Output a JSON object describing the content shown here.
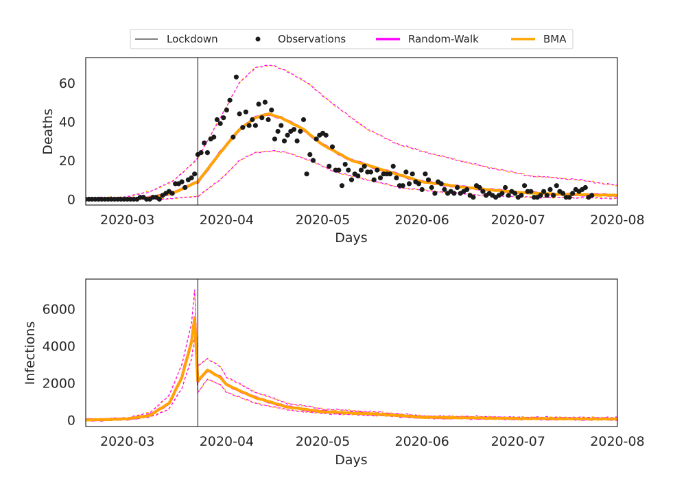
{
  "legend": {
    "items": [
      {
        "key": "lockdown",
        "label": "Lockdown",
        "color": "#000000",
        "style": "thin-line"
      },
      {
        "key": "observations",
        "label": "Observations",
        "color": "#1a1a1a",
        "style": "dot"
      },
      {
        "key": "random_walk",
        "label": "Random-Walk",
        "color": "#ff00ff",
        "style": "thick-line"
      },
      {
        "key": "bma",
        "label": "BMA",
        "color": "#ffa500",
        "style": "thick-line"
      }
    ]
  },
  "colors": {
    "random_walk": "#ff00ff",
    "bma": "#ffa500",
    "observations": "#1a1a1a",
    "lockdown": "#000000",
    "axes": "#262626"
  },
  "chart_data": [
    {
      "type": "line",
      "id": "deaths",
      "title": "",
      "xlabel": "Days",
      "ylabel": "Deaths",
      "xlim": [
        "2020-02-17",
        "2020-08-01"
      ],
      "ylim": [
        -3,
        73
      ],
      "x_ticks": [
        "2020-03-01",
        "2020-04-01",
        "2020-05-01",
        "2020-06-01",
        "2020-07-01",
        "2020-08-01"
      ],
      "x_tick_labels": [
        "2020-03",
        "2020-04",
        "2020-05",
        "2020-06",
        "2020-07",
        "2020-08"
      ],
      "y_ticks": [
        0,
        20,
        40,
        60
      ],
      "y_tick_labels": [
        "0",
        "20",
        "40",
        "60"
      ],
      "lockdown_date": "2020-03-23",
      "series_knots": {
        "mean": [
          [
            "2020-02-17",
            0
          ],
          [
            "2020-03-01",
            0
          ],
          [
            "2020-03-08",
            0.8
          ],
          [
            "2020-03-15",
            3
          ],
          [
            "2020-03-23",
            9
          ],
          [
            "2020-03-30",
            24
          ],
          [
            "2020-04-05",
            36
          ],
          [
            "2020-04-10",
            42
          ],
          [
            "2020-04-14",
            44
          ],
          [
            "2020-04-18",
            42
          ],
          [
            "2020-04-25",
            36
          ],
          [
            "2020-05-01",
            28
          ],
          [
            "2020-05-10",
            20
          ],
          [
            "2020-05-20",
            15
          ],
          [
            "2020-06-01",
            9
          ],
          [
            "2020-06-15",
            6
          ],
          [
            "2020-07-01",
            3.5
          ],
          [
            "2020-07-15",
            2.5
          ],
          [
            "2020-08-01",
            2
          ]
        ],
        "upper": [
          [
            "2020-02-17",
            0.5
          ],
          [
            "2020-03-01",
            1.2
          ],
          [
            "2020-03-08",
            4
          ],
          [
            "2020-03-15",
            9
          ],
          [
            "2020-03-23",
            21
          ],
          [
            "2020-03-30",
            42
          ],
          [
            "2020-04-05",
            60
          ],
          [
            "2020-04-10",
            68
          ],
          [
            "2020-04-15",
            69
          ],
          [
            "2020-04-20",
            66
          ],
          [
            "2020-04-27",
            59
          ],
          [
            "2020-05-05",
            48
          ],
          [
            "2020-05-15",
            36
          ],
          [
            "2020-05-25",
            28
          ],
          [
            "2020-06-05",
            23
          ],
          [
            "2020-06-20",
            17
          ],
          [
            "2020-07-05",
            12
          ],
          [
            "2020-07-20",
            10
          ],
          [
            "2020-08-01",
            7
          ]
        ],
        "lower": [
          [
            "2020-02-17",
            0
          ],
          [
            "2020-03-05",
            0
          ],
          [
            "2020-03-15",
            0.3
          ],
          [
            "2020-03-23",
            1.5
          ],
          [
            "2020-03-30",
            10
          ],
          [
            "2020-04-05",
            20
          ],
          [
            "2020-04-10",
            24
          ],
          [
            "2020-04-15",
            25
          ],
          [
            "2020-04-20",
            24
          ],
          [
            "2020-04-27",
            20
          ],
          [
            "2020-05-05",
            14
          ],
          [
            "2020-05-15",
            10
          ],
          [
            "2020-05-25",
            6
          ],
          [
            "2020-06-05",
            4
          ],
          [
            "2020-06-20",
            2
          ],
          [
            "2020-07-05",
            1
          ],
          [
            "2020-08-01",
            0.5
          ]
        ]
      },
      "observations": {
        "start": "2020-02-17",
        "values": [
          0,
          0,
          0,
          0,
          0,
          0,
          0,
          0,
          0,
          0,
          0,
          0,
          0,
          0,
          0,
          0,
          0,
          1,
          1,
          0,
          0,
          1,
          1,
          0,
          2,
          3,
          4,
          3,
          8,
          8,
          9,
          6,
          10,
          11,
          13,
          23,
          24,
          29,
          24,
          31,
          32,
          41,
          39,
          42,
          46,
          51,
          32,
          63,
          44,
          37,
          45,
          38,
          41,
          38,
          49,
          42,
          50,
          41,
          46,
          31,
          35,
          38,
          30,
          33,
          35,
          36,
          30,
          35,
          41,
          13,
          23,
          20,
          31,
          33,
          34,
          33,
          17,
          27,
          15,
          15,
          7,
          18,
          15,
          10,
          13,
          12,
          15,
          17,
          14,
          14,
          10,
          15,
          11,
          13,
          13,
          13,
          17,
          11,
          7,
          7,
          14,
          8,
          13,
          9,
          8,
          5,
          13,
          10,
          6,
          3,
          9,
          8,
          5,
          3,
          4,
          3,
          6,
          3,
          4,
          5,
          2,
          1,
          7,
          6,
          4,
          2,
          3,
          2,
          1,
          2,
          3,
          6,
          2,
          4,
          3,
          1,
          2,
          7,
          4,
          4,
          1,
          1,
          2,
          4,
          2,
          5,
          2,
          7,
          4,
          3,
          1,
          1,
          3,
          5,
          4,
          5,
          6,
          1,
          2
        ]
      }
    },
    {
      "type": "line",
      "id": "infections",
      "title": "",
      "xlabel": "Days",
      "ylabel": "Infections",
      "xlim": [
        "2020-02-17",
        "2020-08-01"
      ],
      "ylim": [
        -350,
        7600
      ],
      "x_ticks": [
        "2020-03-01",
        "2020-04-01",
        "2020-05-01",
        "2020-06-01",
        "2020-07-01",
        "2020-08-01"
      ],
      "x_tick_labels": [
        "2020-03",
        "2020-04",
        "2020-05",
        "2020-06",
        "2020-07",
        "2020-08"
      ],
      "y_ticks": [
        0,
        2000,
        4000,
        6000
      ],
      "y_tick_labels": [
        "0",
        "2000",
        "4000",
        "6000"
      ],
      "lockdown_date": "2020-03-23",
      "series_knots": {
        "mean": [
          [
            "2020-02-17",
            0
          ],
          [
            "2020-03-01",
            60
          ],
          [
            "2020-03-08",
            250
          ],
          [
            "2020-03-14",
            900
          ],
          [
            "2020-03-18",
            2300
          ],
          [
            "2020-03-21",
            4200
          ],
          [
            "2020-03-22",
            5500
          ],
          [
            "2020-03-23",
            2100
          ],
          [
            "2020-03-26",
            2700
          ],
          [
            "2020-03-30",
            2300
          ],
          [
            "2020-04-01",
            1900
          ],
          [
            "2020-04-10",
            1200
          ],
          [
            "2020-04-20",
            700
          ],
          [
            "2020-05-01",
            450
          ],
          [
            "2020-05-20",
            300
          ],
          [
            "2020-06-01",
            150
          ],
          [
            "2020-07-01",
            80
          ],
          [
            "2020-08-01",
            50
          ]
        ],
        "upper": [
          [
            "2020-02-17",
            20
          ],
          [
            "2020-03-01",
            100
          ],
          [
            "2020-03-08",
            400
          ],
          [
            "2020-03-14",
            1300
          ],
          [
            "2020-03-18",
            3000
          ],
          [
            "2020-03-21",
            5200
          ],
          [
            "2020-03-22",
            7000
          ],
          [
            "2020-03-23",
            2900
          ],
          [
            "2020-03-26",
            3300
          ],
          [
            "2020-03-30",
            2900
          ],
          [
            "2020-04-01",
            2300
          ],
          [
            "2020-04-10",
            1500
          ],
          [
            "2020-04-20",
            900
          ],
          [
            "2020-05-01",
            600
          ],
          [
            "2020-05-20",
            400
          ],
          [
            "2020-06-01",
            220
          ],
          [
            "2020-07-01",
            150
          ],
          [
            "2020-08-01",
            130
          ]
        ],
        "lower": [
          [
            "2020-02-17",
            0
          ],
          [
            "2020-03-01",
            30
          ],
          [
            "2020-03-08",
            150
          ],
          [
            "2020-03-14",
            600
          ],
          [
            "2020-03-18",
            1700
          ],
          [
            "2020-03-21",
            3300
          ],
          [
            "2020-03-22",
            4500
          ],
          [
            "2020-03-23",
            1500
          ],
          [
            "2020-03-26",
            2200
          ],
          [
            "2020-03-30",
            1900
          ],
          [
            "2020-04-01",
            1500
          ],
          [
            "2020-04-10",
            900
          ],
          [
            "2020-04-20",
            550
          ],
          [
            "2020-05-01",
            350
          ],
          [
            "2020-05-20",
            230
          ],
          [
            "2020-06-01",
            100
          ],
          [
            "2020-07-01",
            40
          ],
          [
            "2020-08-01",
            20
          ]
        ]
      }
    }
  ]
}
